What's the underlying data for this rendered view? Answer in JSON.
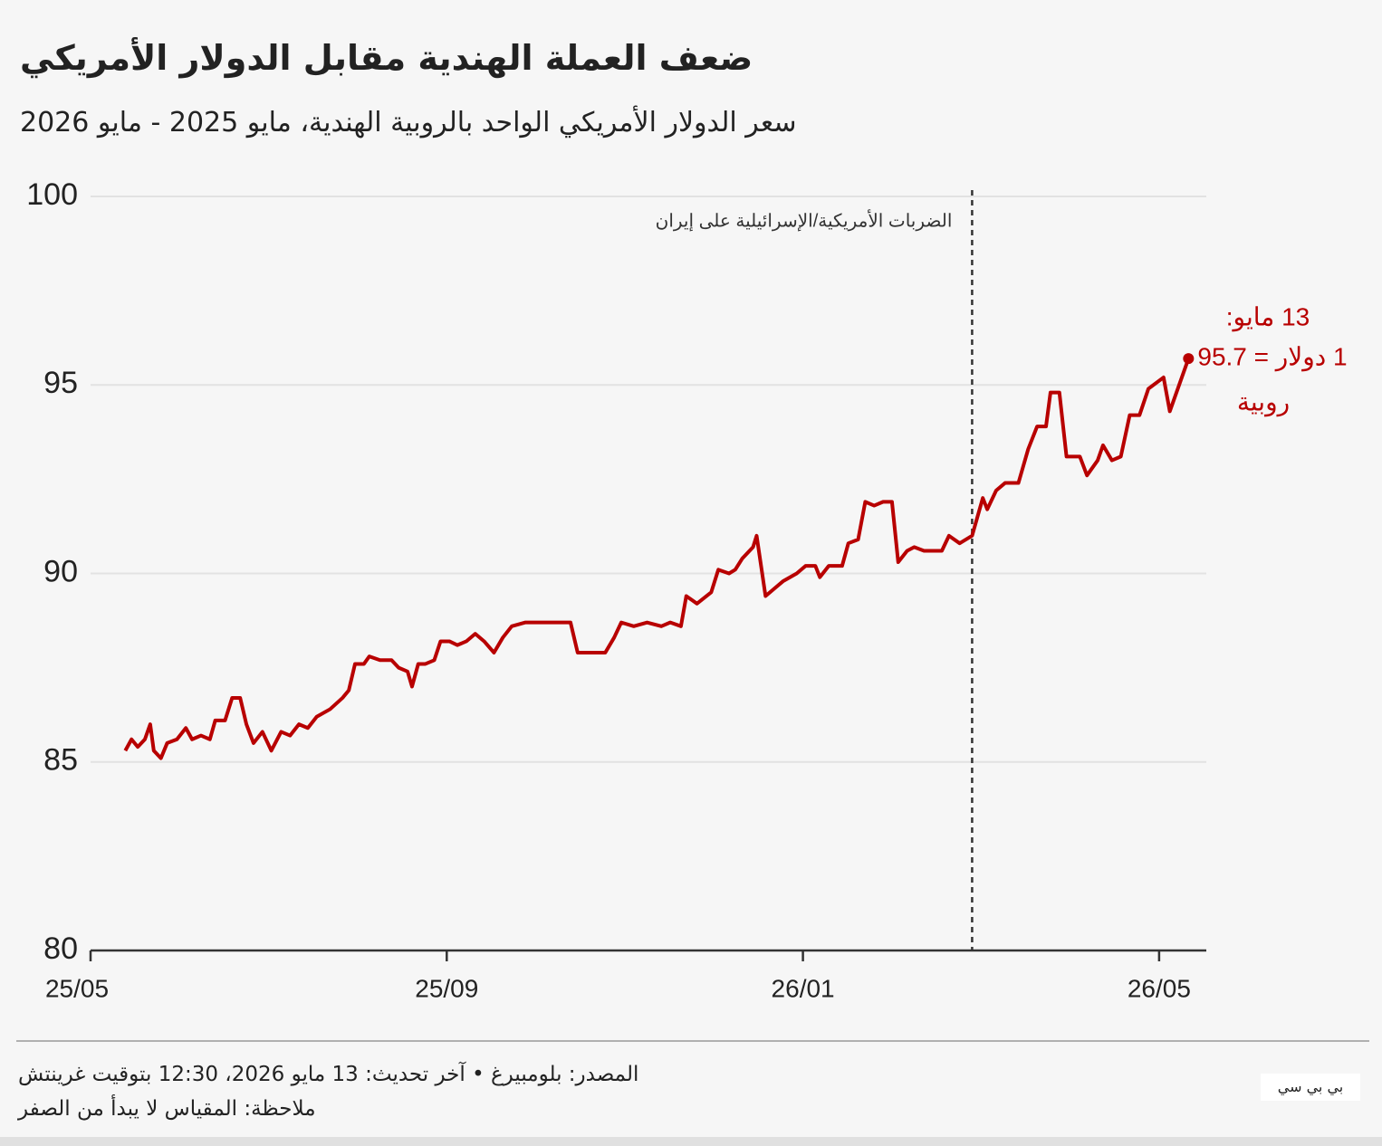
{
  "chart_data": {
    "type": "line",
    "title": "ضعف العملة الهندية مقابل الدولار الأمريكي",
    "subtitle": "سعر الدولار الأمريكي الواحد بالروبية الهندية، مايو 2025 - مايو 2026",
    "color": "#b80000",
    "x": [
      0.39,
      0.46,
      0.53,
      0.61,
      0.67,
      0.71,
      0.79,
      0.86,
      0.97,
      1.07,
      1.14,
      1.24,
      1.34,
      1.4,
      1.51,
      1.59,
      1.68,
      1.75,
      1.83,
      1.93,
      2.03,
      2.14,
      2.24,
      2.34,
      2.44,
      2.54,
      2.69,
      2.83,
      2.9,
      2.97,
      3.07,
      3.13,
      3.25,
      3.38,
      3.46,
      3.56,
      3.61,
      3.68,
      3.76,
      3.86,
      3.93,
      4.03,
      4.12,
      4.22,
      4.32,
      4.42,
      4.53,
      4.63,
      4.73,
      4.88,
      5.03,
      5.19,
      5.39,
      5.47,
      5.59,
      5.78,
      5.88,
      5.96,
      6.1,
      6.25,
      6.41,
      6.51,
      6.63,
      6.69,
      6.81,
      6.97,
      7.05,
      7.17,
      7.24,
      7.32,
      7.44,
      7.48,
      7.58,
      7.68,
      7.78,
      7.93,
      8.03,
      8.14,
      8.19,
      8.29,
      8.44,
      8.51,
      8.62,
      8.7,
      8.8,
      8.9,
      9.0,
      9.07,
      9.17,
      9.25,
      9.36,
      9.56,
      9.64,
      9.76,
      9.9,
      10.02,
      10.07,
      10.17,
      10.27,
      10.42,
      10.53,
      10.63,
      10.73,
      10.78,
      10.88,
      10.96,
      11.11,
      11.19,
      11.31,
      11.37,
      11.47,
      11.57,
      11.67,
      11.78,
      11.88,
      12.05,
      12.12,
      12.33
    ],
    "values": [
      85.3,
      85.6,
      85.4,
      85.6,
      86.0,
      85.3,
      85.1,
      85.5,
      85.6,
      85.9,
      85.6,
      85.7,
      85.6,
      86.1,
      86.1,
      86.7,
      86.7,
      86.0,
      85.5,
      85.8,
      85.3,
      85.8,
      85.7,
      86.0,
      85.9,
      86.2,
      86.4,
      86.7,
      86.9,
      87.6,
      87.6,
      87.8,
      87.7,
      87.7,
      87.5,
      87.4,
      87.0,
      87.6,
      87.6,
      87.7,
      88.2,
      88.2,
      88.1,
      88.2,
      88.4,
      88.2,
      87.9,
      88.3,
      88.6,
      88.7,
      88.7,
      88.7,
      88.7,
      87.9,
      87.9,
      87.9,
      88.3,
      88.7,
      88.6,
      88.7,
      88.6,
      88.7,
      88.6,
      89.4,
      89.2,
      89.5,
      90.1,
      90.0,
      90.1,
      90.4,
      90.7,
      91.0,
      89.4,
      89.6,
      89.8,
      90.0,
      90.2,
      90.2,
      89.9,
      90.2,
      90.2,
      90.8,
      90.9,
      91.9,
      91.8,
      91.9,
      91.9,
      90.3,
      90.6,
      90.7,
      90.6,
      90.6,
      91.0,
      90.8,
      91.0,
      92.0,
      91.7,
      92.2,
      92.4,
      92.4,
      93.3,
      93.9,
      93.9,
      94.8,
      94.8,
      93.1,
      93.1,
      92.6,
      93.0,
      93.4,
      93.0,
      93.1,
      94.2,
      94.2,
      94.9,
      95.2,
      94.3,
      95.7
    ],
    "end_label": [
      "13 مايو:",
      "1 دولار = 95.7",
      "روبية"
    ],
    "xlim": [
      0,
      12.53
    ],
    "xticks": [
      {
        "value": 0,
        "label": "25/05"
      },
      {
        "value": 4,
        "label": "25/09"
      },
      {
        "value": 8,
        "label": "26/01"
      },
      {
        "value": 12,
        "label": "26/05"
      }
    ],
    "ylim": [
      80,
      100
    ],
    "yticks": [
      80,
      85,
      90,
      95,
      100
    ],
    "grid": true,
    "annotations": [
      {
        "x": 9.9,
        "text": "الضربات الأمريكية/الإسرائيلية على إيران"
      }
    ]
  },
  "footer": {
    "source": "المصدر: بلومبيرغ • آخر تحديث: 13 مايو 2026، 12:30 بتوقيت غرينتش",
    "note": "ملاحظة: المقياس لا يبدأ من الصفر",
    "logo": "بي بي سي"
  }
}
